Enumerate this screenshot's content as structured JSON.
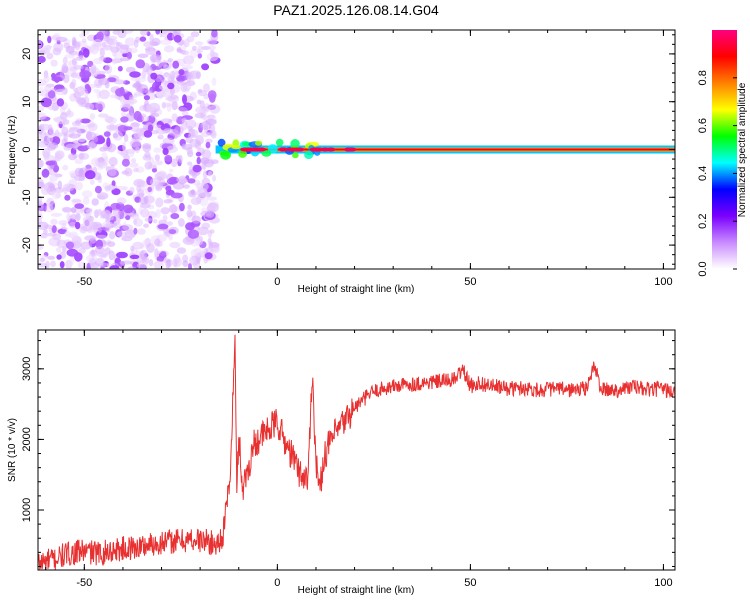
{
  "figure_title": "PAZ1.2025.126.08.14.G04",
  "chart_data": [
    {
      "type": "heatmap",
      "title": "PAZ1.2025.126.08.14.G04",
      "xlabel": "Height of straight line (km)",
      "ylabel": "Frequency (Hz)",
      "xlim": [
        -62,
        103
      ],
      "ylim": [
        -25,
        25
      ],
      "xticks": [
        -50,
        0,
        50,
        100
      ],
      "yticks": [
        -20,
        -10,
        0,
        10,
        20
      ],
      "colorbar": {
        "label": "Normalized spectral amplitude",
        "range": [
          0,
          1
        ],
        "ticks": [
          "0.0",
          "0.2",
          "0.4",
          "0.6",
          "0.8"
        ],
        "colormap": [
          "#ffffff",
          "#c98bff",
          "#7a00ff",
          "#0000ff",
          "#00ffff",
          "#00ff00",
          "#ffff00",
          "#ff8000",
          "#ff0000",
          "#ff0080"
        ]
      },
      "regions": [
        {
          "name": "noise",
          "x_range": [
            -62,
            -16
          ],
          "freq_range": [
            -25,
            25
          ],
          "amplitude_range": [
            0.02,
            0.15
          ]
        },
        {
          "name": "carrier",
          "x_range": [
            -16,
            103
          ],
          "center_freq_hz": 0,
          "peak_amplitude": 1.0
        }
      ]
    },
    {
      "type": "line",
      "xlabel": "Height of straight line (km)",
      "ylabel": "SNR (10 * v/v)",
      "xlim": [
        -62,
        103
      ],
      "ylim": [
        150,
        3550
      ],
      "xticks": [
        -50,
        0,
        50,
        100
      ],
      "yticks": [
        1000,
        2000,
        3000
      ],
      "line_color": "#e83030",
      "series": [
        {
          "x": [
            -62,
            -58,
            -54,
            -50,
            -46,
            -42,
            -38,
            -34,
            -30,
            -26,
            -22,
            -18,
            -16,
            -14,
            -13,
            -12,
            -11,
            -10.5,
            -10,
            -9,
            -8,
            -7,
            -6,
            -4,
            -2,
            0,
            2,
            4,
            6,
            8,
            9,
            10,
            11,
            12,
            14,
            16,
            18,
            20,
            22,
            24,
            26,
            30,
            34,
            38,
            42,
            46,
            48,
            50,
            52,
            56,
            60,
            64,
            68,
            72,
            76,
            80,
            82,
            84,
            88,
            92,
            96,
            100,
            103
          ],
          "y": [
            250,
            300,
            380,
            420,
            380,
            440,
            460,
            500,
            540,
            560,
            580,
            560,
            500,
            650,
            1100,
            1700,
            3500,
            1200,
            2100,
            1300,
            1500,
            1700,
            1950,
            2050,
            2150,
            2250,
            1950,
            1750,
            1500,
            1450,
            3000,
            1700,
            1250,
            1750,
            2000,
            2150,
            2300,
            2450,
            2550,
            2650,
            2700,
            2750,
            2780,
            2800,
            2820,
            2850,
            3000,
            2750,
            2800,
            2750,
            2720,
            2730,
            2700,
            2720,
            2700,
            2720,
            3050,
            2700,
            2700,
            2750,
            2700,
            2720,
            2650
          ]
        }
      ]
    }
  ]
}
